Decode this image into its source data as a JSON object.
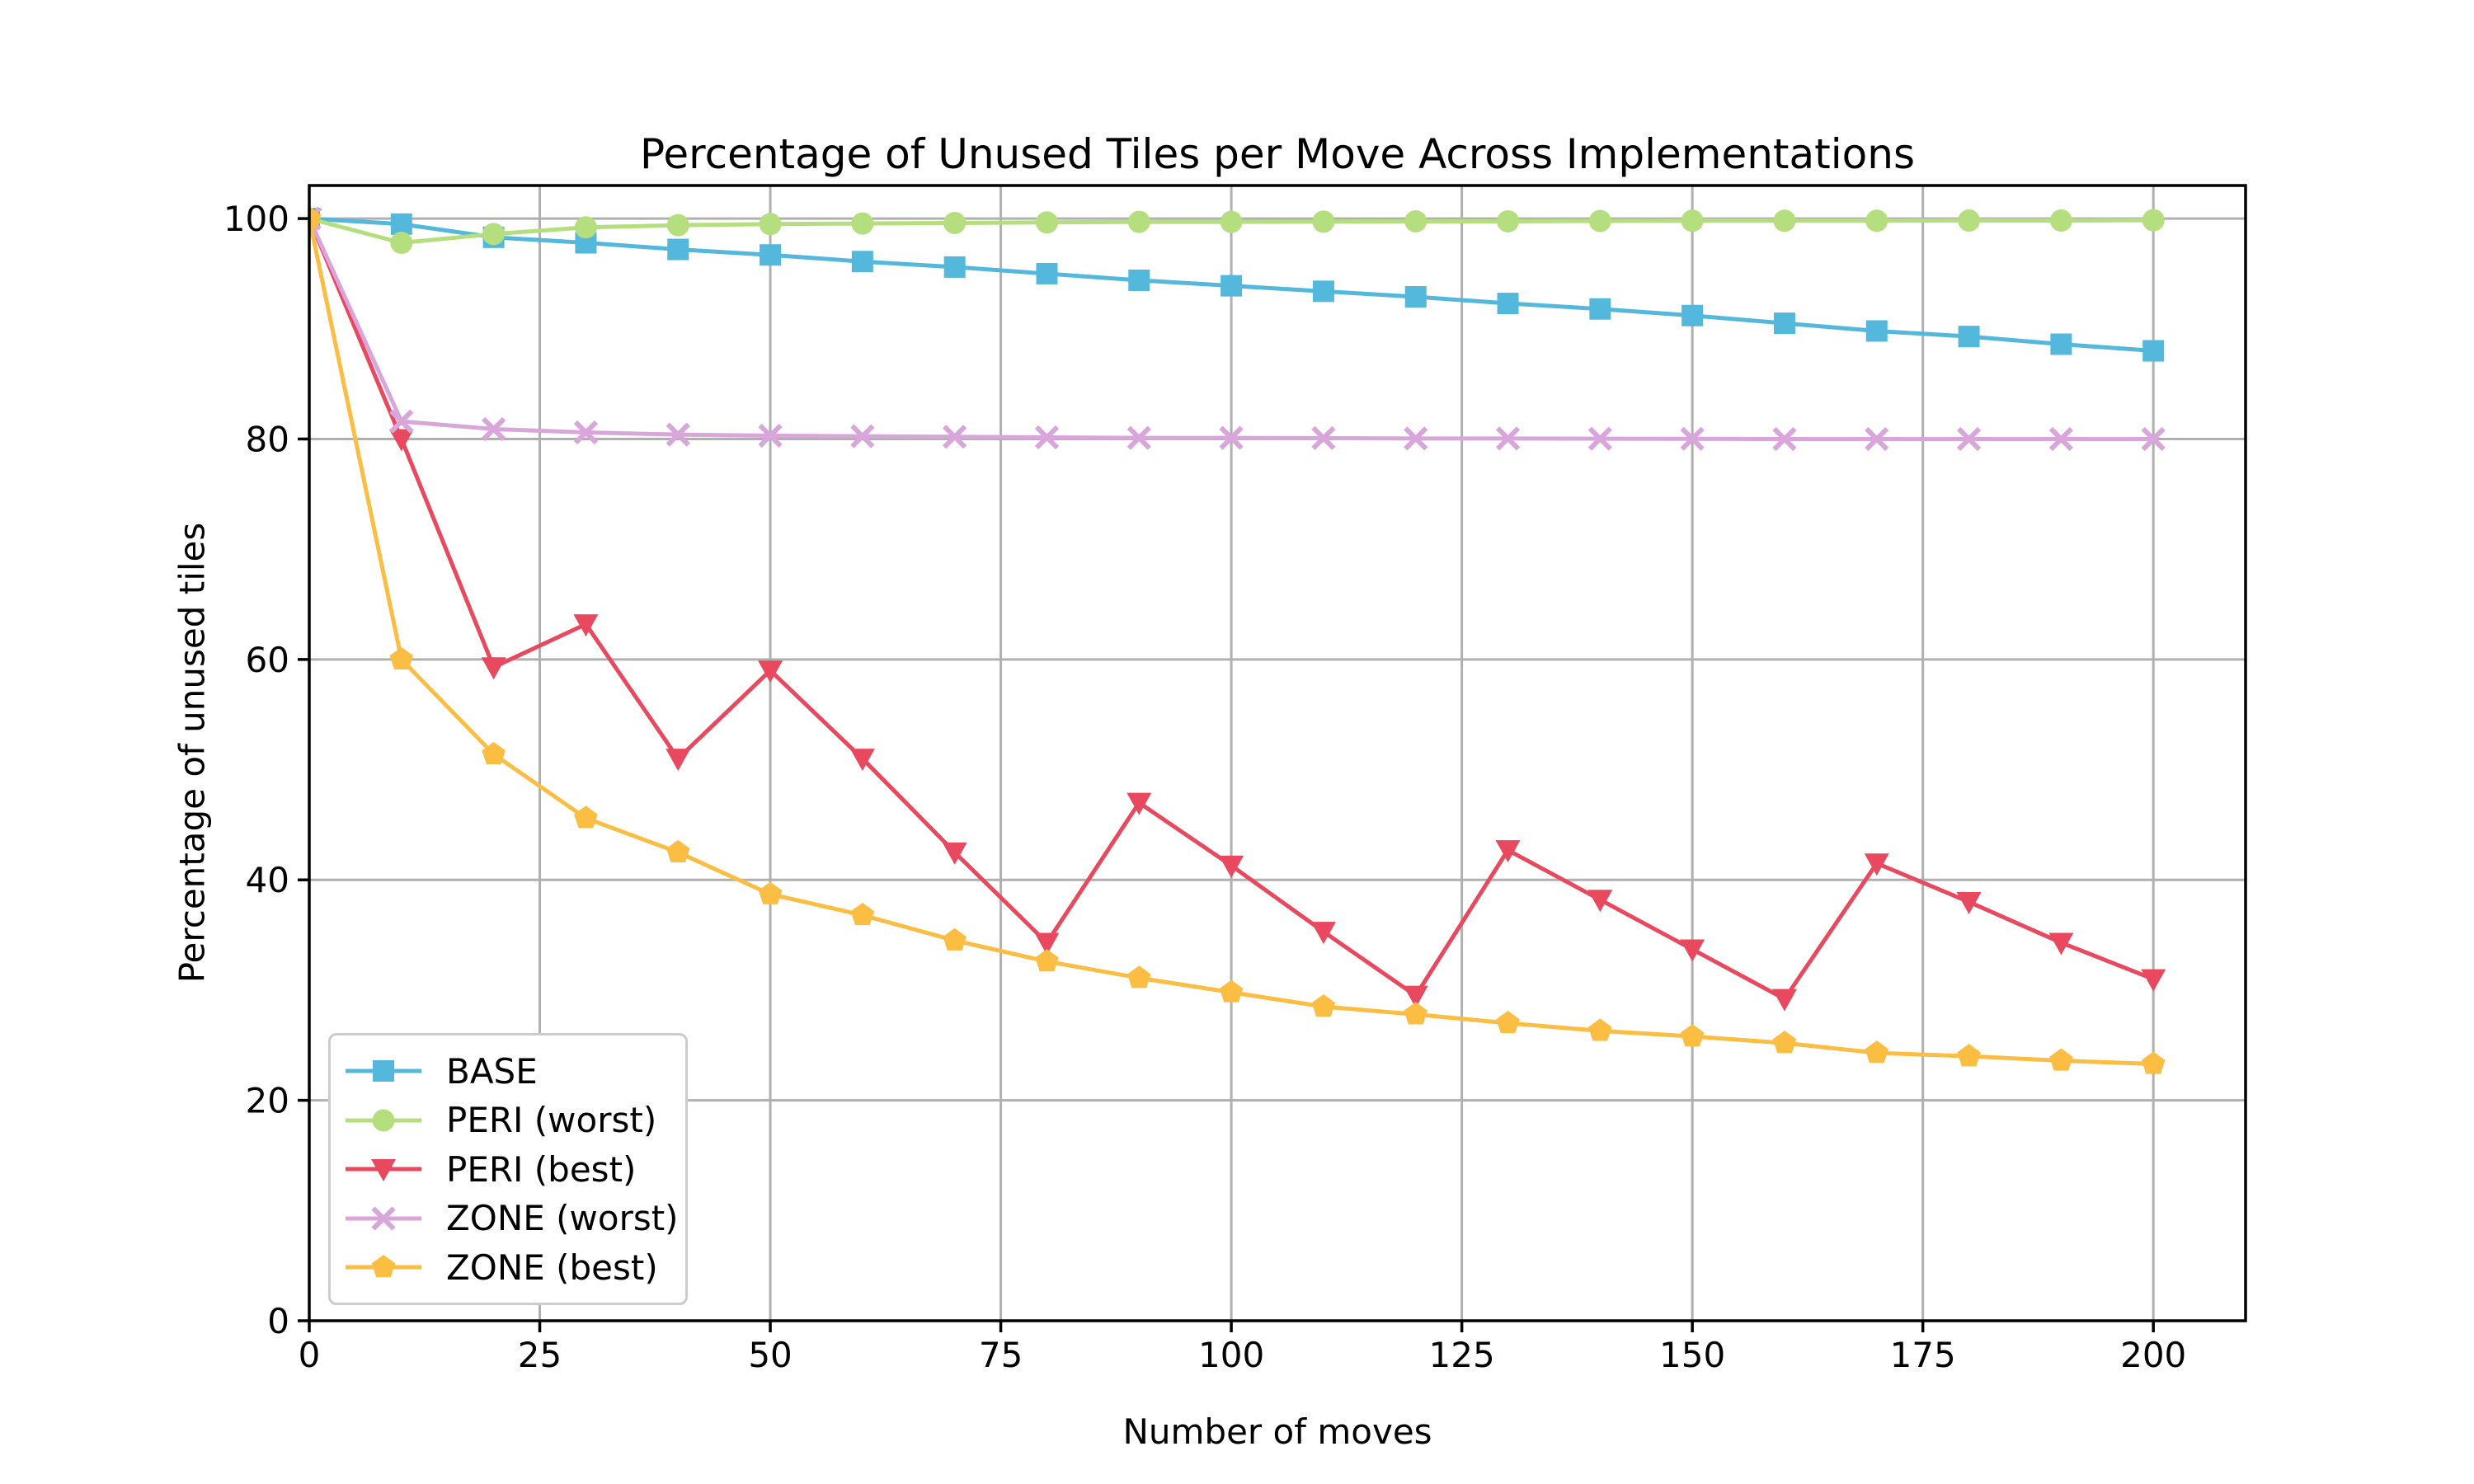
{
  "chart_data": {
    "type": "line",
    "title": "Percentage of Unused Tiles per Move Across Implementations",
    "xlabel": "Number of moves",
    "ylabel": "Percentage of unused tiles",
    "x": [
      0,
      10,
      20,
      30,
      40,
      50,
      60,
      70,
      80,
      90,
      100,
      110,
      120,
      130,
      140,
      150,
      160,
      170,
      180,
      190,
      200
    ],
    "xlim": [
      0,
      210
    ],
    "ylim": [
      0,
      103
    ],
    "xticks": [
      0,
      25,
      50,
      75,
      100,
      125,
      150,
      175,
      200
    ],
    "yticks": [
      0,
      20,
      40,
      60,
      80,
      100
    ],
    "grid": true,
    "grid_color": "#b0b0b0",
    "axis_color": "#000000",
    "background_color": "#ffffff",
    "legend_position": "lower left",
    "series": [
      {
        "name": "BASE",
        "color": "#54b8dc",
        "marker": "square",
        "values": [
          100,
          99.5,
          98.3,
          97.8,
          97.2,
          96.7,
          96.1,
          95.6,
          95.0,
          94.4,
          93.9,
          93.4,
          92.9,
          92.3,
          91.8,
          91.2,
          90.5,
          89.8,
          89.3,
          88.6,
          88.0
        ]
      },
      {
        "name": "PERI (worst)",
        "color": "#b5df7e",
        "marker": "circle",
        "values": [
          100,
          97.8,
          98.6,
          99.2,
          99.4,
          99.5,
          99.55,
          99.6,
          99.65,
          99.7,
          99.7,
          99.72,
          99.75,
          99.75,
          99.78,
          99.8,
          99.8,
          99.8,
          99.82,
          99.82,
          99.85
        ]
      },
      {
        "name": "PERI (best)",
        "color": "#e8495f",
        "marker": "triangle-down",
        "values": [
          100,
          80.0,
          59.3,
          63.2,
          51.0,
          59.0,
          51.0,
          42.5,
          34.3,
          47.0,
          41.3,
          35.3,
          29.5,
          42.7,
          38.2,
          33.7,
          29.2,
          41.5,
          38.0,
          34.3,
          31.0
        ]
      },
      {
        "name": "ZONE (worst)",
        "color": "#d9a6dc",
        "marker": "x",
        "values": [
          100,
          81.6,
          80.9,
          80.6,
          80.4,
          80.3,
          80.25,
          80.2,
          80.15,
          80.1,
          80.1,
          80.08,
          80.05,
          80.05,
          80.03,
          80.02,
          80.0,
          80.0,
          80.0,
          80.0,
          80.0
        ]
      },
      {
        "name": "ZONE (best)",
        "color": "#fbbd42",
        "marker": "pentagon",
        "values": [
          100,
          60.0,
          51.4,
          45.6,
          42.5,
          38.7,
          36.8,
          34.5,
          32.6,
          31.1,
          29.8,
          28.5,
          27.8,
          27.0,
          26.3,
          25.8,
          25.2,
          24.3,
          24.0,
          23.6,
          23.3
        ]
      }
    ]
  }
}
